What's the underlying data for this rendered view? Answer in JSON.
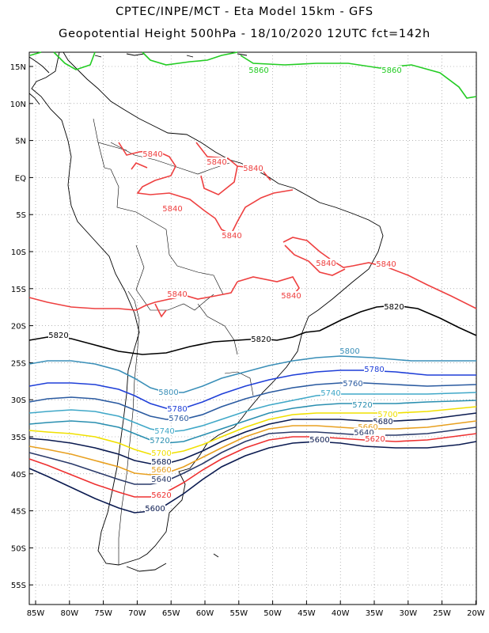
{
  "header": {
    "line1": "CPTEC/INPE/MCT -  Eta Model 15km - GFS",
    "line2": "Geopotential Height 500hPa - 18/10/2020 12UTC fct=142h"
  },
  "axes": {
    "lat_labels": [
      "15N",
      "10N",
      "5N",
      "EQ",
      "5S",
      "10S",
      "15S",
      "20S",
      "25S",
      "30S",
      "35S",
      "40S",
      "45S",
      "50S",
      "55S"
    ],
    "lon_labels": [
      "85W",
      "80W",
      "75W",
      "70W",
      "65W",
      "60W",
      "55W",
      "50W",
      "45W",
      "40W",
      "35W",
      "30W",
      "25W",
      "20W"
    ]
  },
  "contours": {
    "colors": {
      "5860": "#22cc22",
      "5840": "#ee4040",
      "5820": "#000000",
      "5800": "#3a8fb8",
      "5780": "#1f3fd8",
      "5760": "#2a5aa0",
      "5740": "#40a8c8",
      "5720": "#2a8fb0",
      "5700": "#f0e000",
      "5680": "#0a1a50",
      "5660": "#e8a020",
      "5640": "#2a3a6a",
      "5620": "#ee3030",
      "5600": "#0a1a50"
    },
    "labels": [
      {
        "text": "5860",
        "level": "5860"
      },
      {
        "text": "5860",
        "level": "5860"
      },
      {
        "text": "5840",
        "level": "5840"
      },
      {
        "text": "5840",
        "level": "5840"
      },
      {
        "text": "5840",
        "level": "5840"
      },
      {
        "text": "5840",
        "level": "5840"
      },
      {
        "text": "5840",
        "level": "5840"
      },
      {
        "text": "5840",
        "level": "5840"
      },
      {
        "text": "5840",
        "level": "5840"
      },
      {
        "text": "5840",
        "level": "5840"
      },
      {
        "text": "5840",
        "level": "5840"
      },
      {
        "text": "5820",
        "level": "5820"
      },
      {
        "text": "5820",
        "level": "5820"
      },
      {
        "text": "5820",
        "level": "5820"
      },
      {
        "text": "5800",
        "level": "5800"
      },
      {
        "text": "5800",
        "level": "5800"
      },
      {
        "text": "5780",
        "level": "5780"
      },
      {
        "text": "5780",
        "level": "5780"
      },
      {
        "text": "5760",
        "level": "5760"
      },
      {
        "text": "5760",
        "level": "5760"
      },
      {
        "text": "5740",
        "level": "5740"
      },
      {
        "text": "5740",
        "level": "5740"
      },
      {
        "text": "5720",
        "level": "5720"
      },
      {
        "text": "5720",
        "level": "5720"
      },
      {
        "text": "5700",
        "level": "5700"
      },
      {
        "text": "5700",
        "level": "5700"
      },
      {
        "text": "5680",
        "level": "5680"
      },
      {
        "text": "5680",
        "level": "5680"
      },
      {
        "text": "5660",
        "level": "5660"
      },
      {
        "text": "5660",
        "level": "5660"
      },
      {
        "text": "5640",
        "level": "5640"
      },
      {
        "text": "5640",
        "level": "5640"
      },
      {
        "text": "5620",
        "level": "5620"
      },
      {
        "text": "5620",
        "level": "5620"
      },
      {
        "text": "5600",
        "level": "5600"
      },
      {
        "text": "5600",
        "level": "5600"
      }
    ]
  }
}
